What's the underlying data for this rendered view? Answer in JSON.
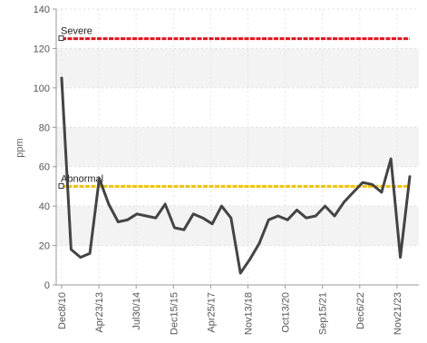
{
  "chart_data": {
    "type": "line",
    "title": "",
    "xlabel": "",
    "ylabel": "ppm",
    "ylim": [
      0,
      140
    ],
    "yticks": [
      0,
      20,
      40,
      60,
      80,
      100,
      120,
      140
    ],
    "xtick_labels": [
      "Dec8/10",
      "Apr23/13",
      "Jul30/14",
      "Dec15/15",
      "Apr25/17",
      "Nov13/18",
      "Oct13/20",
      "Sep15/21",
      "Dec6/22",
      "Nov21/23"
    ],
    "grid": true,
    "thresholds": [
      {
        "label": "Severe",
        "value": 125,
        "color": "#e8121c"
      },
      {
        "label": "Abnormal",
        "value": 50,
        "color": "#f2c200"
      }
    ],
    "series": [
      {
        "color": "#444444",
        "values": [
          105,
          18,
          14,
          16,
          54,
          41,
          32,
          33,
          36,
          35,
          34,
          41,
          29,
          28,
          36,
          34,
          31,
          40,
          34,
          6,
          13,
          21,
          33,
          35,
          33,
          38,
          34,
          35,
          40,
          35,
          42,
          47,
          52,
          51,
          47,
          64,
          14,
          55
        ]
      }
    ]
  }
}
